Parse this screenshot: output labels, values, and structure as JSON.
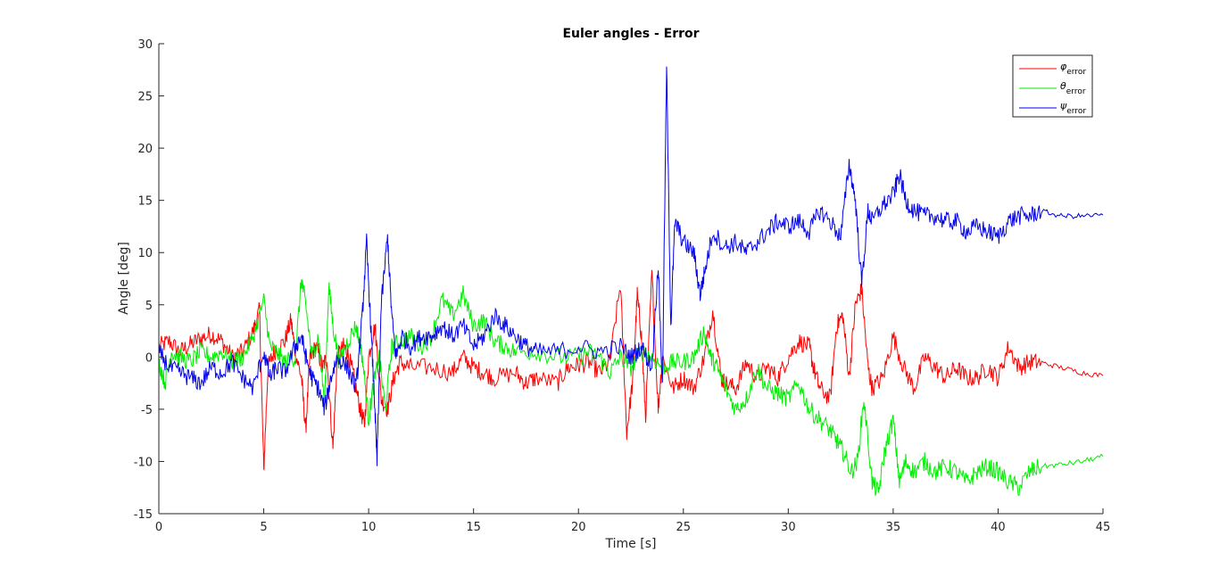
{
  "chart_data": {
    "type": "line",
    "title": "Euler angles - Error",
    "xlabel": "Time [s]",
    "ylabel": "Angle [deg]",
    "xlim": [
      0,
      45
    ],
    "ylim": [
      -15,
      30
    ],
    "xticks": [
      0,
      5,
      10,
      15,
      20,
      25,
      30,
      35,
      40,
      45
    ],
    "yticks": [
      -15,
      -10,
      -5,
      0,
      5,
      10,
      15,
      20,
      25,
      30
    ],
    "grid": false,
    "legend_position": "top-right",
    "series": [
      {
        "name": "φ",
        "subscript": "error",
        "color": "#ff0000",
        "points": [
          [
            0,
            1
          ],
          [
            0.5,
            1.5
          ],
          [
            1,
            0.5
          ],
          [
            1.5,
            1.2
          ],
          [
            2,
            1.8
          ],
          [
            2.5,
            2.2
          ],
          [
            3,
            1.5
          ],
          [
            3.5,
            0
          ],
          [
            4,
            0.5
          ],
          [
            4.5,
            2.5
          ],
          [
            4.8,
            4.5
          ],
          [
            5,
            -11
          ],
          [
            5.2,
            -1
          ],
          [
            5.5,
            0.5
          ],
          [
            6,
            1.5
          ],
          [
            6.3,
            3.5
          ],
          [
            6.5,
            0.5
          ],
          [
            6.8,
            -2
          ],
          [
            7,
            -7
          ],
          [
            7.2,
            0
          ],
          [
            7.5,
            1
          ],
          [
            7.8,
            -1
          ],
          [
            8,
            0
          ],
          [
            8.3,
            -8.8
          ],
          [
            8.5,
            0
          ],
          [
            8.8,
            1
          ],
          [
            9,
            0.5
          ],
          [
            9.3,
            -2
          ],
          [
            9.6,
            -5
          ],
          [
            9.8,
            -6.5
          ],
          [
            10,
            0
          ],
          [
            10.3,
            3
          ],
          [
            10.6,
            -4
          ],
          [
            10.9,
            -5
          ],
          [
            11.2,
            -2
          ],
          [
            11.5,
            -0.5
          ],
          [
            12,
            -1
          ],
          [
            13,
            -1
          ],
          [
            14,
            -1.5
          ],
          [
            14.5,
            0
          ],
          [
            15,
            -1
          ],
          [
            15.5,
            -1.5
          ],
          [
            16,
            -2
          ],
          [
            17,
            -1.5
          ],
          [
            17.5,
            -2.5
          ],
          [
            18,
            -2
          ],
          [
            19,
            -2.5
          ],
          [
            19.5,
            -1
          ],
          [
            20,
            -0.8
          ],
          [
            20.5,
            -0.5
          ],
          [
            21,
            -1.5
          ],
          [
            21.5,
            -0.5
          ],
          [
            22,
            7
          ],
          [
            22.3,
            -7.2
          ],
          [
            22.6,
            -2
          ],
          [
            22.8,
            6
          ],
          [
            23,
            2
          ],
          [
            23.2,
            -5.8
          ],
          [
            23.5,
            8
          ],
          [
            23.8,
            -5
          ],
          [
            24,
            0
          ],
          [
            24.5,
            -3
          ],
          [
            25,
            -2
          ],
          [
            25.5,
            -3
          ],
          [
            26,
            0
          ],
          [
            26.4,
            4.5
          ],
          [
            26.8,
            -2
          ],
          [
            27,
            -2.5
          ],
          [
            27.5,
            -3
          ],
          [
            28,
            -0.5
          ],
          [
            28.5,
            -2
          ],
          [
            29,
            -1
          ],
          [
            29.5,
            -2
          ],
          [
            30,
            0
          ],
          [
            30.5,
            1.5
          ],
          [
            31,
            1
          ],
          [
            31.2,
            -1
          ],
          [
            31.5,
            -3
          ],
          [
            32,
            -4
          ],
          [
            32.3,
            3
          ],
          [
            32.6,
            4
          ],
          [
            32.9,
            -2
          ],
          [
            33.2,
            5
          ],
          [
            33.5,
            6.5
          ],
          [
            33.8,
            -1
          ],
          [
            34,
            -3
          ],
          [
            34.5,
            -2
          ],
          [
            35,
            2
          ],
          [
            35.5,
            -1
          ],
          [
            36,
            -3
          ],
          [
            36.5,
            0
          ],
          [
            37,
            -1
          ],
          [
            37.5,
            -2
          ],
          [
            38,
            -1
          ],
          [
            38.5,
            -2
          ],
          [
            39,
            -2
          ],
          [
            39.5,
            -1
          ],
          [
            40,
            -2
          ],
          [
            40.5,
            1
          ],
          [
            41,
            -1
          ],
          [
            41.5,
            -0.5
          ],
          [
            42,
            -0.5
          ],
          [
            43,
            -1
          ],
          [
            44,
            -1.5
          ],
          [
            45,
            -1.8
          ]
        ]
      },
      {
        "name": "θ",
        "subscript": "error",
        "color": "#00ee00",
        "points": [
          [
            0,
            -0.5
          ],
          [
            0.3,
            -2.5
          ],
          [
            0.6,
            0.5
          ],
          [
            1,
            0
          ],
          [
            1.5,
            -0.5
          ],
          [
            2,
            0.5
          ],
          [
            2.5,
            0
          ],
          [
            3,
            0.5
          ],
          [
            3.5,
            -0.5
          ],
          [
            4,
            0
          ],
          [
            4.5,
            2
          ],
          [
            5,
            5.5
          ],
          [
            5.3,
            1
          ],
          [
            5.6,
            0.5
          ],
          [
            6,
            -0.5
          ],
          [
            6.5,
            0
          ],
          [
            6.8,
            7.5
          ],
          [
            7,
            5
          ],
          [
            7.3,
            0
          ],
          [
            7.6,
            2
          ],
          [
            7.9,
            -4.5
          ],
          [
            8.1,
            7
          ],
          [
            8.3,
            3
          ],
          [
            8.6,
            -0.5
          ],
          [
            9,
            1.5
          ],
          [
            9.4,
            3
          ],
          [
            9.7,
            0
          ],
          [
            10,
            -6
          ],
          [
            10.2,
            -3
          ],
          [
            10.5,
            0
          ],
          [
            10.8,
            -5
          ],
          [
            11.1,
            1
          ],
          [
            11.5,
            1.5
          ],
          [
            12,
            2
          ],
          [
            12.5,
            1
          ],
          [
            13,
            2
          ],
          [
            13.5,
            5.5
          ],
          [
            14,
            4
          ],
          [
            14.5,
            6
          ],
          [
            15,
            3
          ],
          [
            15.5,
            3.5
          ],
          [
            16,
            1.5
          ],
          [
            16.5,
            1
          ],
          [
            17,
            0.5
          ],
          [
            18,
            0.5
          ],
          [
            19,
            0
          ],
          [
            20,
            0
          ],
          [
            20.5,
            0.5
          ],
          [
            21,
            0
          ],
          [
            21.5,
            -1.5
          ],
          [
            22,
            0
          ],
          [
            22.5,
            -1
          ],
          [
            23,
            0.5
          ],
          [
            23.5,
            0
          ],
          [
            24,
            -1
          ],
          [
            24.5,
            -0.5
          ],
          [
            25,
            -0.5
          ],
          [
            25.5,
            0
          ],
          [
            26,
            2.5
          ],
          [
            26.3,
            0
          ],
          [
            26.6,
            -1
          ],
          [
            27,
            -3
          ],
          [
            27.5,
            -5
          ],
          [
            28,
            -4
          ],
          [
            28.5,
            -1
          ],
          [
            29,
            -3
          ],
          [
            29.5,
            -3.5
          ],
          [
            30,
            -4
          ],
          [
            30.5,
            -2.5
          ],
          [
            31,
            -5
          ],
          [
            31.5,
            -6
          ],
          [
            32,
            -7
          ],
          [
            32.3,
            -8
          ],
          [
            32.6,
            -9
          ],
          [
            33,
            -11
          ],
          [
            33.3,
            -10
          ],
          [
            33.6,
            -4
          ],
          [
            34,
            -12
          ],
          [
            34.3,
            -13
          ],
          [
            34.6,
            -9
          ],
          [
            35,
            -6
          ],
          [
            35.3,
            -12
          ],
          [
            35.6,
            -10
          ],
          [
            36,
            -11
          ],
          [
            36.5,
            -10
          ],
          [
            37,
            -11
          ],
          [
            37.5,
            -10.5
          ],
          [
            38,
            -11
          ],
          [
            38.5,
            -12
          ],
          [
            39,
            -11
          ],
          [
            39.5,
            -10.5
          ],
          [
            40,
            -11
          ],
          [
            40.5,
            -12
          ],
          [
            41,
            -12.5
          ],
          [
            41.5,
            -11
          ],
          [
            42,
            -10.5
          ],
          [
            43,
            -10.3
          ],
          [
            44,
            -10
          ],
          [
            45,
            -9.5
          ]
        ]
      },
      {
        "name": "ψ",
        "subscript": "error",
        "color": "#0000ee",
        "points": [
          [
            0,
            0.5
          ],
          [
            0.5,
            -1
          ],
          [
            1,
            -1.5
          ],
          [
            1.5,
            -2
          ],
          [
            2,
            -2.5
          ],
          [
            2.5,
            -1
          ],
          [
            3,
            -1.5
          ],
          [
            3.5,
            -0.5
          ],
          [
            4,
            -2
          ],
          [
            4.5,
            -3
          ],
          [
            5,
            0.5
          ],
          [
            5.3,
            -2
          ],
          [
            5.6,
            -1
          ],
          [
            6,
            -1.5
          ],
          [
            6.5,
            1
          ],
          [
            6.8,
            2
          ],
          [
            7,
            0
          ],
          [
            7.3,
            -2
          ],
          [
            7.6,
            -3
          ],
          [
            7.9,
            -5
          ],
          [
            8.2,
            -2
          ],
          [
            8.5,
            0
          ],
          [
            9,
            -1
          ],
          [
            9.4,
            -3
          ],
          [
            9.7,
            4
          ],
          [
            9.9,
            11
          ],
          [
            10.1,
            3
          ],
          [
            10.3,
            -5
          ],
          [
            10.4,
            -10
          ],
          [
            10.6,
            5
          ],
          [
            10.9,
            11.5
          ],
          [
            11.1,
            4
          ],
          [
            11.3,
            0
          ],
          [
            11.6,
            2
          ],
          [
            12,
            1
          ],
          [
            12.5,
            2
          ],
          [
            13,
            2
          ],
          [
            13.5,
            3
          ],
          [
            14,
            2
          ],
          [
            14.5,
            3
          ],
          [
            15,
            1
          ],
          [
            15.5,
            2
          ],
          [
            16,
            4
          ],
          [
            16.5,
            3
          ],
          [
            17,
            2
          ],
          [
            17.5,
            1
          ],
          [
            18,
            0.5
          ],
          [
            19,
            0.5
          ],
          [
            20,
            1
          ],
          [
            21,
            0.5
          ],
          [
            22,
            1
          ],
          [
            22.5,
            0
          ],
          [
            23,
            1
          ],
          [
            23.5,
            -1
          ],
          [
            23.8,
            9
          ],
          [
            24,
            -3
          ],
          [
            24.2,
            27.8
          ],
          [
            24.4,
            3
          ],
          [
            24.6,
            13
          ],
          [
            25,
            11
          ],
          [
            25.5,
            10
          ],
          [
            25.8,
            6
          ],
          [
            26,
            8
          ],
          [
            26.4,
            12
          ],
          [
            27,
            10.5
          ],
          [
            27.5,
            11
          ],
          [
            28,
            10
          ],
          [
            28.5,
            11
          ],
          [
            29,
            12
          ],
          [
            29.5,
            13
          ],
          [
            30,
            12.5
          ],
          [
            30.5,
            13
          ],
          [
            31,
            12
          ],
          [
            31.5,
            14
          ],
          [
            32,
            13
          ],
          [
            32.5,
            11.5
          ],
          [
            32.9,
            18.5
          ],
          [
            33.2,
            15
          ],
          [
            33.5,
            7
          ],
          [
            33.8,
            14
          ],
          [
            34,
            13
          ],
          [
            34.5,
            14.5
          ],
          [
            35,
            15.5
          ],
          [
            35.3,
            17.5
          ],
          [
            35.6,
            15
          ],
          [
            36,
            14
          ],
          [
            36.5,
            13.5
          ],
          [
            37,
            13.5
          ],
          [
            37.5,
            13
          ],
          [
            38,
            13
          ],
          [
            38.5,
            12
          ],
          [
            39,
            12.5
          ],
          [
            39.5,
            12
          ],
          [
            40,
            11.5
          ],
          [
            40.5,
            13
          ],
          [
            41,
            13.5
          ],
          [
            41.5,
            13.5
          ],
          [
            42,
            14
          ],
          [
            43,
            13.5
          ],
          [
            44,
            13.5
          ],
          [
            45,
            13.6
          ]
        ]
      }
    ]
  }
}
